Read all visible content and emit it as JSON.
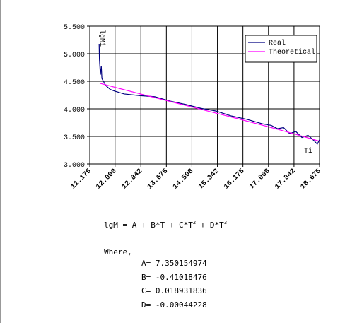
{
  "chart_data": {
    "type": "line",
    "xlim": [
      11.175,
      18.675
    ],
    "xticks": [
      {
        "value": 11.175,
        "label": "11.175"
      },
      {
        "value": 12.0,
        "label": "12.000"
      },
      {
        "value": 12.842,
        "label": "12.842"
      },
      {
        "value": 13.675,
        "label": "13.675"
      },
      {
        "value": 14.508,
        "label": "14.508"
      },
      {
        "value": 15.342,
        "label": "15.342"
      },
      {
        "value": 16.175,
        "label": "16.175"
      },
      {
        "value": 17.008,
        "label": "17.008"
      },
      {
        "value": 17.842,
        "label": "17.842"
      },
      {
        "value": 18.675,
        "label": "18.675"
      }
    ],
    "ylim": [
      3.0,
      5.5
    ],
    "yticks": [
      {
        "value": 3.0,
        "label": "3.000"
      },
      {
        "value": 3.5,
        "label": "3.500"
      },
      {
        "value": 4.0,
        "label": "4.000"
      },
      {
        "value": 4.5,
        "label": "4.500"
      },
      {
        "value": 5.0,
        "label": "5.000"
      },
      {
        "value": 5.5,
        "label": "5.500"
      }
    ],
    "grid": true,
    "legend": "upper right",
    "annotations": [
      "lgMi",
      "Ti"
    ],
    "series": [
      {
        "name": "Real",
        "color": "#000080",
        "x": [
          11.48,
          11.49,
          11.52,
          11.55,
          11.57,
          11.62,
          11.7,
          11.85,
          12.0,
          12.3,
          12.8,
          13.3,
          13.8,
          14.3,
          14.8,
          15.3,
          15.8,
          16.3,
          16.8,
          17.1,
          17.3,
          17.5,
          17.7,
          17.9,
          18.1,
          18.3,
          18.5,
          18.6,
          18.675
        ],
        "values": [
          5.18,
          4.9,
          4.62,
          4.78,
          4.55,
          4.5,
          4.42,
          4.35,
          4.32,
          4.27,
          4.24,
          4.22,
          4.14,
          4.08,
          4.01,
          3.96,
          3.87,
          3.81,
          3.73,
          3.7,
          3.64,
          3.66,
          3.55,
          3.59,
          3.48,
          3.52,
          3.42,
          3.36,
          3.44
        ]
      },
      {
        "name": "Theoretical",
        "color": "#ff00ff",
        "x": [
          11.5,
          12,
          13,
          14.5,
          15.5,
          16,
          17,
          17.5,
          18,
          18.675
        ],
        "values": [
          4.464,
          4.39,
          4.246,
          4.035,
          3.894,
          3.822,
          3.676,
          3.6,
          3.522,
          3.412
        ]
      }
    ]
  },
  "formula": {
    "parts": [
      "lgM = A + B*T + C*T",
      "2",
      " + D*T",
      "3"
    ],
    "where": "Where,",
    "constants": [
      "A= 7.350154974",
      "B= -0.41018476",
      "C= 0.018931836",
      "D= -0.00044228"
    ]
  }
}
